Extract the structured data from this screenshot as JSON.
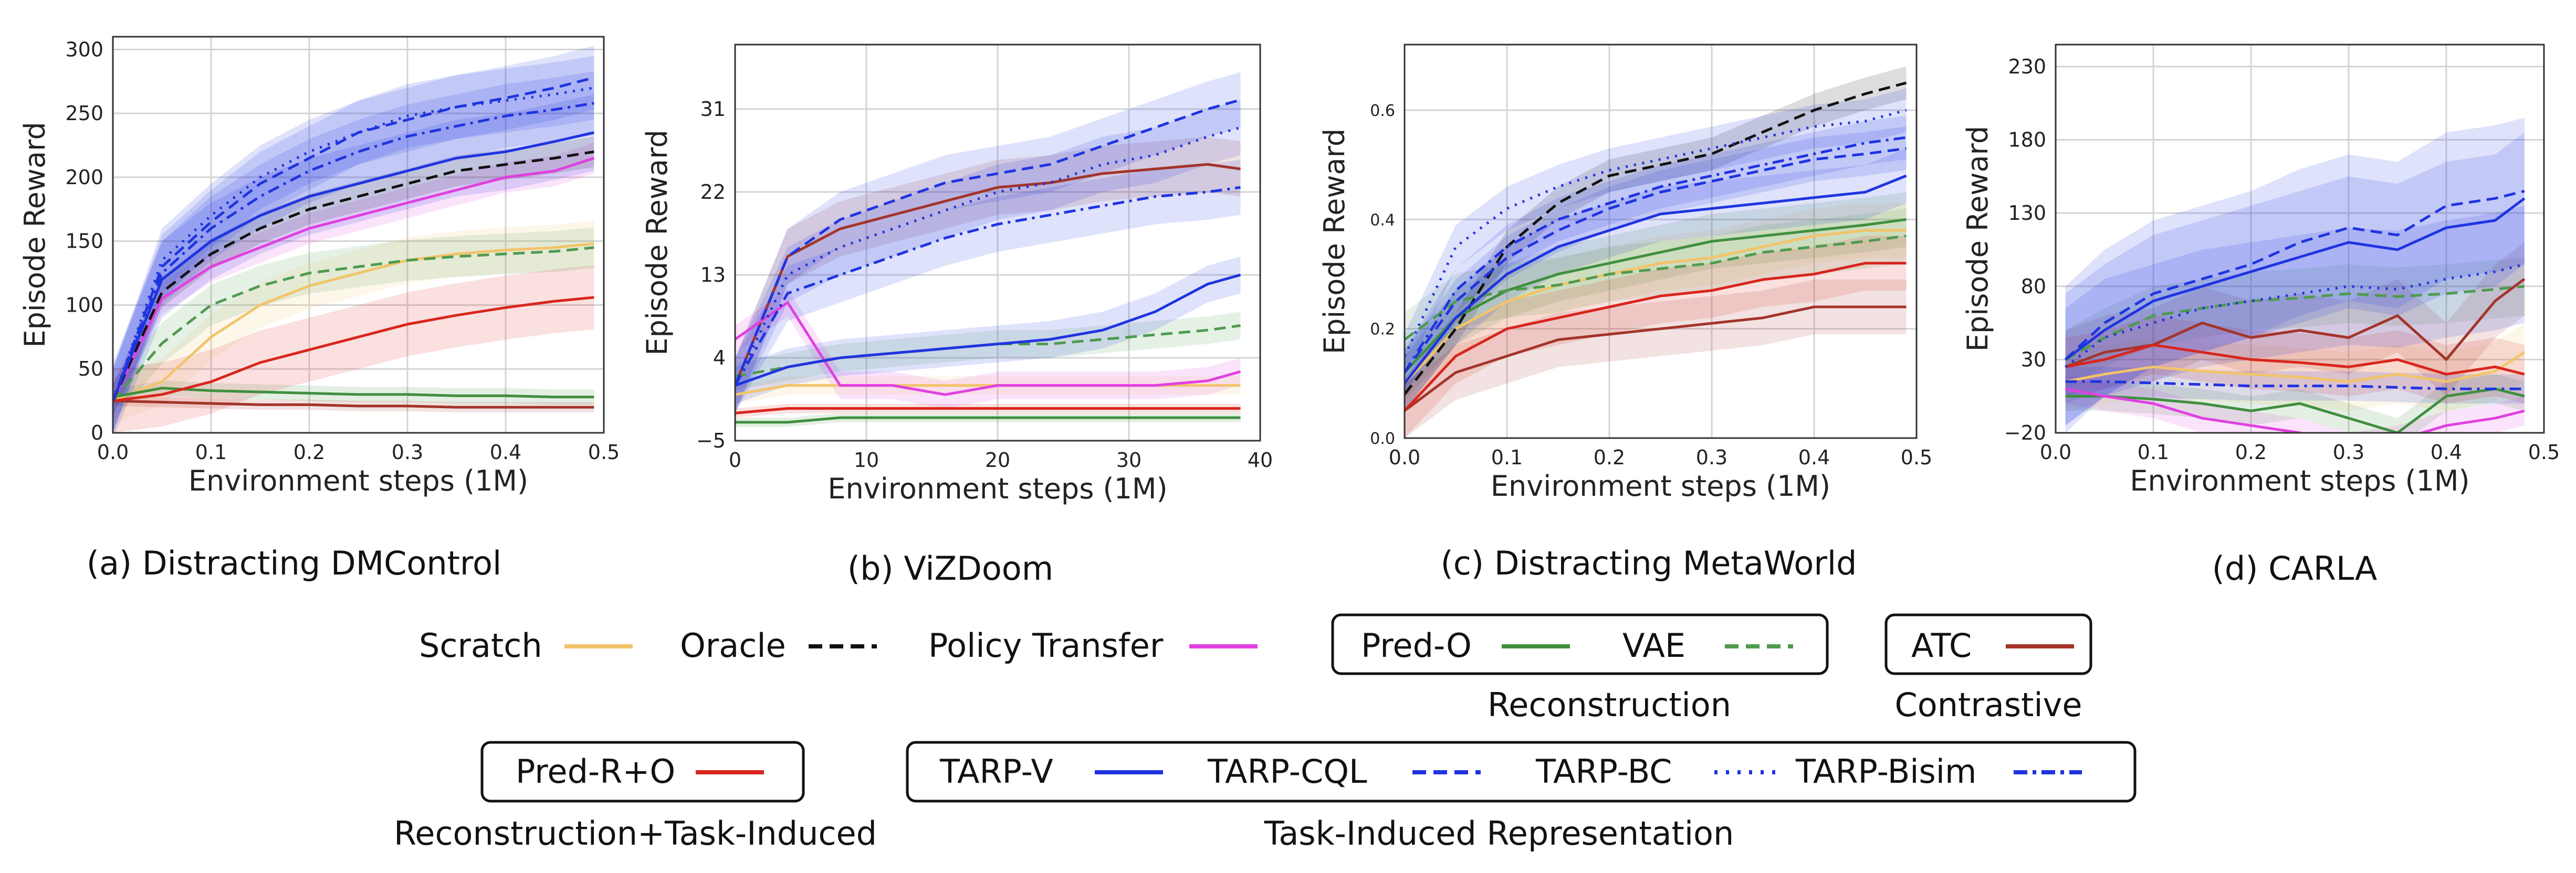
{
  "colors": {
    "Scratch": "#f2c46a",
    "Oracle": "#111111",
    "Policy Transfer": "#e040e0",
    "Pred-O": "#3f8f3f",
    "VAE": "#4f9a4f",
    "ATC": "#a3342a",
    "Pred-R+O": "#d9251c",
    "TARP-V": "#1f34e0",
    "TARP-CQL": "#1f34e0",
    "TARP-BC": "#1f34e0",
    "TARP-Bisim": "#1f34e0"
  },
  "legend": {
    "row1": [
      {
        "name": "Scratch",
        "style": "solid",
        "color": "#f2c46a"
      },
      {
        "name": "Oracle",
        "style": "dashed",
        "color": "#111111"
      },
      {
        "name": "Policy Transfer",
        "style": "solid",
        "color": "#e040e0"
      }
    ],
    "reconstruction_box": [
      {
        "name": "Pred-O",
        "style": "solid",
        "color": "#3f8f3f"
      },
      {
        "name": "VAE",
        "style": "dashed",
        "color": "#4f9a4f"
      }
    ],
    "contrastive_box": [
      {
        "name": "ATC",
        "style": "solid",
        "color": "#a3342a"
      }
    ],
    "recon_task_box": [
      {
        "name": "Pred-R+O",
        "style": "solid",
        "color": "#d9251c"
      }
    ],
    "task_box": [
      {
        "name": "TARP-V",
        "style": "solid",
        "color": "#1f34e0"
      },
      {
        "name": "TARP-CQL",
        "style": "dashed",
        "color": "#1f34e0"
      },
      {
        "name": "TARP-BC",
        "style": "dotted",
        "color": "#1f34e0"
      },
      {
        "name": "TARP-Bisim",
        "style": "dashdot",
        "color": "#1f34e0"
      }
    ],
    "groups": {
      "reconstruction": "Reconstruction",
      "contrastive": "Contrastive",
      "recon_task": "Reconstruction+Task-Induced",
      "task": "Task-Induced Representation"
    }
  },
  "chart_data": [
    {
      "type": "line",
      "caption": "(a) Distracting DMControl",
      "xlabel": "Environment steps (1M)",
      "ylabel": "Episode Reward",
      "xlim": [
        0,
        0.5
      ],
      "ylim": [
        0,
        310
      ],
      "xticks": [
        0.0,
        0.1,
        0.2,
        0.3,
        0.4,
        0.5
      ],
      "xtick_labels": [
        "0.0",
        "0.1",
        "0.2",
        "0.3",
        "0.4",
        "0.5"
      ],
      "yticks": [
        0,
        50,
        100,
        150,
        200,
        250,
        300
      ],
      "ytick_labels": [
        "0",
        "50",
        "100",
        "150",
        "200",
        "250",
        "300"
      ],
      "grid": true,
      "x": [
        0.0,
        0.05,
        0.1,
        0.15,
        0.2,
        0.25,
        0.3,
        0.35,
        0.4,
        0.45,
        0.49
      ],
      "series": [
        {
          "name": "Scratch",
          "values": [
            25,
            40,
            75,
            100,
            115,
            125,
            135,
            140,
            143,
            145,
            148
          ],
          "band": 18
        },
        {
          "name": "Oracle",
          "values": [
            25,
            110,
            140,
            160,
            175,
            185,
            195,
            205,
            210,
            215,
            220
          ],
          "band": 12
        },
        {
          "name": "Policy Transfer",
          "values": [
            25,
            105,
            130,
            145,
            160,
            170,
            180,
            190,
            200,
            205,
            215
          ],
          "band": 12
        },
        {
          "name": "Pred-O",
          "values": [
            28,
            35,
            33,
            32,
            31,
            30,
            30,
            29,
            29,
            28,
            28
          ],
          "band": 6
        },
        {
          "name": "VAE",
          "values": [
            25,
            70,
            100,
            115,
            125,
            130,
            135,
            138,
            140,
            142,
            145
          ],
          "band": 16
        },
        {
          "name": "ATC",
          "values": [
            25,
            24,
            23,
            22,
            22,
            21,
            21,
            20,
            20,
            20,
            20
          ],
          "band": 4
        },
        {
          "name": "Pred-R+O",
          "values": [
            25,
            30,
            40,
            55,
            65,
            75,
            85,
            92,
            98,
            103,
            106
          ],
          "band": 25
        },
        {
          "name": "TARP-V",
          "values": [
            25,
            120,
            150,
            170,
            185,
            195,
            205,
            215,
            220,
            228,
            235
          ],
          "band": 30
        },
        {
          "name": "TARP-CQL",
          "values": [
            25,
            130,
            165,
            195,
            215,
            235,
            245,
            255,
            262,
            270,
            278
          ],
          "band": 25
        },
        {
          "name": "TARP-BC",
          "values": [
            25,
            135,
            170,
            200,
            220,
            235,
            248,
            255,
            260,
            265,
            270
          ],
          "band": 25
        },
        {
          "name": "TARP-Bisim",
          "values": [
            25,
            125,
            160,
            185,
            205,
            220,
            232,
            240,
            248,
            253,
            258
          ],
          "band": 25
        }
      ]
    },
    {
      "type": "line",
      "caption": "(b) ViZDoom",
      "xlabel": "Environment steps (1M)",
      "ylabel": "Episode Reward",
      "xlim": [
        0,
        40
      ],
      "ylim": [
        -5,
        38
      ],
      "xticks": [
        0,
        10,
        20,
        30,
        40
      ],
      "xtick_labels": [
        "0",
        "10",
        "20",
        "30",
        "40"
      ],
      "yticks": [
        -5,
        4,
        13,
        22,
        31
      ],
      "ytick_labels": [
        "−5",
        "4",
        "13",
        "22",
        "31"
      ],
      "grid": true,
      "x": [
        0,
        4,
        8,
        12,
        16,
        20,
        24,
        28,
        32,
        36,
        38.5
      ],
      "series": [
        {
          "name": "Scratch",
          "values": [
            0,
            1,
            1,
            1,
            1,
            1,
            1,
            1,
            1,
            1,
            1
          ],
          "band": 1
        },
        {
          "name": "Policy Transfer",
          "values": [
            6,
            10,
            1,
            1,
            0,
            1,
            1,
            1,
            1,
            1.5,
            2.5
          ],
          "band": 1.5
        },
        {
          "name": "Pred-O",
          "values": [
            -3,
            -3,
            -2.5,
            -2.5,
            -2.5,
            -2.5,
            -2.5,
            -2.5,
            -2.5,
            -2.5,
            -2.5
          ],
          "band": 0.5
        },
        {
          "name": "VAE",
          "values": [
            2,
            3,
            4,
            4.5,
            5,
            5.5,
            5.5,
            6,
            6.5,
            7,
            7.5
          ],
          "band": 1.5
        },
        {
          "name": "ATC",
          "values": [
            1,
            15,
            18,
            19.5,
            21,
            22.5,
            23,
            24,
            24.5,
            25,
            24.5
          ],
          "band": 3
        },
        {
          "name": "Pred-R+O",
          "values": [
            -2,
            -1.5,
            -1.5,
            -1.5,
            -1.5,
            -1.5,
            -1.5,
            -1.5,
            -1.5,
            -1.5,
            -1.5
          ],
          "band": 0.5
        },
        {
          "name": "TARP-V",
          "values": [
            1,
            3,
            4,
            4.5,
            5,
            5.5,
            6,
            7,
            9,
            12,
            13
          ],
          "band": 2
        },
        {
          "name": "TARP-CQL",
          "values": [
            1,
            15,
            19,
            21,
            23,
            24,
            25,
            27,
            29,
            31,
            32
          ],
          "band": 3
        },
        {
          "name": "TARP-BC",
          "values": [
            1,
            13,
            16,
            18,
            20,
            22,
            23,
            25,
            26,
            28,
            29
          ],
          "band": 3
        },
        {
          "name": "TARP-Bisim",
          "values": [
            1,
            11,
            13,
            15,
            17,
            18.5,
            19.5,
            20.5,
            21.5,
            22,
            22.5
          ],
          "band": 3
        }
      ]
    },
    {
      "type": "line",
      "caption": "(c) Distracting MetaWorld",
      "xlabel": "Environment steps (1M)",
      "ylabel": "Episode Reward",
      "xlim": [
        0,
        0.5
      ],
      "ylim": [
        0,
        0.72
      ],
      "xticks": [
        0.0,
        0.1,
        0.2,
        0.3,
        0.4,
        0.5
      ],
      "xtick_labels": [
        "0.0",
        "0.1",
        "0.2",
        "0.3",
        "0.4",
        "0.5"
      ],
      "yticks": [
        0.0,
        0.2,
        0.4,
        0.6
      ],
      "ytick_labels": [
        "0.0",
        "0.2",
        "0.4",
        "0.6"
      ],
      "grid": true,
      "x": [
        0.0,
        0.05,
        0.1,
        0.15,
        0.2,
        0.25,
        0.3,
        0.35,
        0.4,
        0.45,
        0.49
      ],
      "series": [
        {
          "name": "Scratch",
          "values": [
            0.1,
            0.2,
            0.25,
            0.28,
            0.3,
            0.32,
            0.33,
            0.35,
            0.37,
            0.38,
            0.38
          ],
          "band": 0.05
        },
        {
          "name": "Oracle",
          "values": [
            0.08,
            0.2,
            0.35,
            0.43,
            0.48,
            0.5,
            0.52,
            0.56,
            0.6,
            0.63,
            0.65
          ],
          "band": 0.03
        },
        {
          "name": "Pred-O",
          "values": [
            0.12,
            0.22,
            0.27,
            0.3,
            0.32,
            0.34,
            0.36,
            0.37,
            0.38,
            0.39,
            0.4
          ],
          "band": 0.05
        },
        {
          "name": "VAE",
          "values": [
            0.18,
            0.25,
            0.27,
            0.28,
            0.3,
            0.31,
            0.32,
            0.34,
            0.35,
            0.36,
            0.37
          ],
          "band": 0.05
        },
        {
          "name": "ATC",
          "values": [
            0.05,
            0.12,
            0.15,
            0.18,
            0.19,
            0.2,
            0.21,
            0.22,
            0.24,
            0.24,
            0.24
          ],
          "band": 0.05
        },
        {
          "name": "Pred-R+O",
          "values": [
            0.05,
            0.15,
            0.2,
            0.22,
            0.24,
            0.26,
            0.27,
            0.29,
            0.3,
            0.32,
            0.32
          ],
          "band": 0.05
        },
        {
          "name": "TARP-V",
          "values": [
            0.1,
            0.22,
            0.3,
            0.35,
            0.38,
            0.41,
            0.42,
            0.43,
            0.44,
            0.45,
            0.48
          ],
          "band": 0.05
        },
        {
          "name": "TARP-CQL",
          "values": [
            0.12,
            0.25,
            0.33,
            0.38,
            0.42,
            0.45,
            0.47,
            0.49,
            0.51,
            0.52,
            0.53
          ],
          "band": 0.04
        },
        {
          "name": "TARP-BC",
          "values": [
            0.15,
            0.35,
            0.42,
            0.46,
            0.49,
            0.51,
            0.53,
            0.55,
            0.57,
            0.58,
            0.6
          ],
          "band": 0.04
        },
        {
          "name": "TARP-Bisim",
          "values": [
            0.12,
            0.27,
            0.35,
            0.4,
            0.43,
            0.46,
            0.48,
            0.5,
            0.52,
            0.54,
            0.55
          ],
          "band": 0.04
        }
      ]
    },
    {
      "type": "line",
      "caption": "(d) CARLA",
      "xlabel": "Environment steps (1M)",
      "ylabel": "Episode Reward",
      "xlim": [
        0,
        0.5
      ],
      "ylim": [
        -20,
        245
      ],
      "xticks": [
        0.0,
        0.1,
        0.2,
        0.3,
        0.4,
        0.5
      ],
      "xtick_labels": [
        "0.0",
        "0.1",
        "0.2",
        "0.3",
        "0.4",
        "0.5"
      ],
      "yticks": [
        -20,
        30,
        80,
        130,
        180,
        230
      ],
      "ytick_labels": [
        "−20",
        "30",
        "80",
        "130",
        "180",
        "230"
      ],
      "grid": true,
      "x": [
        0.01,
        0.05,
        0.1,
        0.15,
        0.2,
        0.25,
        0.3,
        0.35,
        0.4,
        0.45,
        0.48
      ],
      "series": [
        {
          "name": "Scratch",
          "values": [
            15,
            20,
            25,
            22,
            20,
            18,
            15,
            20,
            15,
            22,
            35
          ],
          "band": 20
        },
        {
          "name": "Policy Transfer",
          "values": [
            10,
            5,
            0,
            -10,
            -15,
            -20,
            -30,
            -25,
            -15,
            -10,
            -5
          ],
          "band": 10
        },
        {
          "name": "Pred-O",
          "values": [
            5,
            5,
            3,
            0,
            -5,
            0,
            -10,
            -20,
            5,
            10,
            5
          ],
          "band": 10
        },
        {
          "name": "VAE",
          "values": [
            30,
            45,
            60,
            65,
            70,
            72,
            75,
            73,
            75,
            78,
            80
          ],
          "band": 20
        },
        {
          "name": "ATC",
          "values": [
            25,
            35,
            40,
            55,
            45,
            50,
            45,
            60,
            30,
            70,
            85
          ],
          "band": 25
        },
        {
          "name": "Pred-R+O",
          "values": [
            25,
            30,
            40,
            35,
            30,
            28,
            25,
            30,
            20,
            25,
            20
          ],
          "band": 20
        },
        {
          "name": "TARP-V",
          "values": [
            30,
            50,
            70,
            80,
            90,
            100,
            110,
            105,
            120,
            125,
            140
          ],
          "band": 45
        },
        {
          "name": "TARP-CQL",
          "values": [
            30,
            55,
            75,
            85,
            95,
            110,
            120,
            115,
            135,
            140,
            145
          ],
          "band": 50
        },
        {
          "name": "TARP-BC",
          "values": [
            25,
            45,
            55,
            65,
            70,
            75,
            80,
            78,
            85,
            90,
            95
          ],
          "band": 40
        },
        {
          "name": "TARP-Bisim",
          "values": [
            15,
            15,
            14,
            13,
            12,
            12,
            12,
            11,
            10,
            10,
            10
          ],
          "band": 10
        }
      ]
    }
  ]
}
